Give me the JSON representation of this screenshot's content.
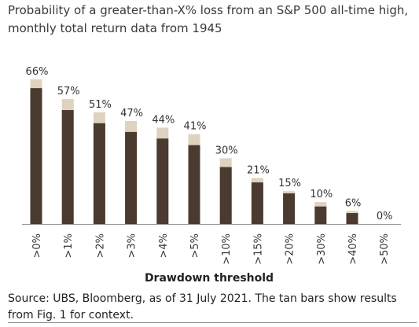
{
  "header": {
    "title_line1": "Probability of a greater-than-X% loss from an S&P 500 all-time high,",
    "title_line2": "monthly total return data from 1945"
  },
  "chart_data": {
    "type": "bar",
    "xlabel": "Drawdown threshold",
    "categories": [
      ">0%",
      ">1%",
      ">2%",
      ">3%",
      ">4%",
      ">5%",
      ">10%",
      ">15%",
      ">20%",
      ">30%",
      ">40%",
      ">50%"
    ],
    "data_labels": [
      "66%",
      "57%",
      "51%",
      "47%",
      "44%",
      "41%",
      "30%",
      "21%",
      "15%",
      "10%",
      "6%",
      "0%"
    ],
    "series": [
      {
        "values": [
          62,
          52,
          46,
          42,
          39,
          36,
          26,
          19,
          14,
          8,
          5,
          0
        ],
        "color": "#4b3a2f"
      },
      {
        "values": [
          66,
          57,
          51,
          47,
          44,
          41,
          30,
          21,
          15,
          10,
          6,
          0
        ],
        "color": "#ddd3be"
      }
    ],
    "ylim": [
      0,
      66
    ],
    "grid": false,
    "legend": "none"
  },
  "footer": {
    "source_line1": "Source: UBS, Bloomberg, as of 31 July 2021. The tan bars show results",
    "source_line2": "from Fig. 1 for context."
  }
}
